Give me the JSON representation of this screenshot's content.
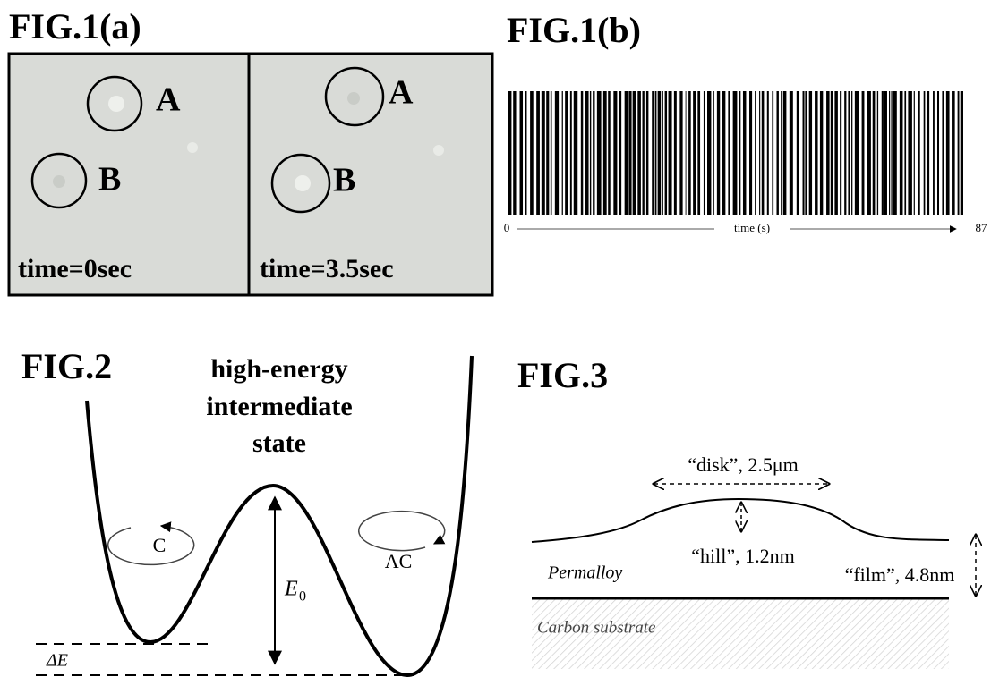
{
  "fig1a": {
    "title": "FIG.1(a)",
    "panels": [
      {
        "labels": [
          "A",
          "B"
        ],
        "caption": "time=0sec"
      },
      {
        "labels": [
          "A",
          "B"
        ],
        "caption": "time=3.5sec"
      }
    ]
  },
  "fig1b": {
    "title": "FIG.1(b)",
    "axis": {
      "start": "0",
      "label": "time (s)",
      "end": "87"
    }
  },
  "fig2": {
    "title": "FIG.2",
    "peak_label": [
      "high-energy",
      "intermediate",
      "state"
    ],
    "rotations": [
      "C",
      "AC"
    ],
    "barrier": {
      "symbol": "E",
      "subscript": "0"
    },
    "delta_label": "ΔE"
  },
  "fig3": {
    "title": "FIG.3",
    "disk": "“disk”, 2.5μm",
    "hill": "“hill”, 1.2nm",
    "film": "“film”, 4.8nm",
    "layer": "Permalloy",
    "substrate": "Carbon substrate"
  }
}
